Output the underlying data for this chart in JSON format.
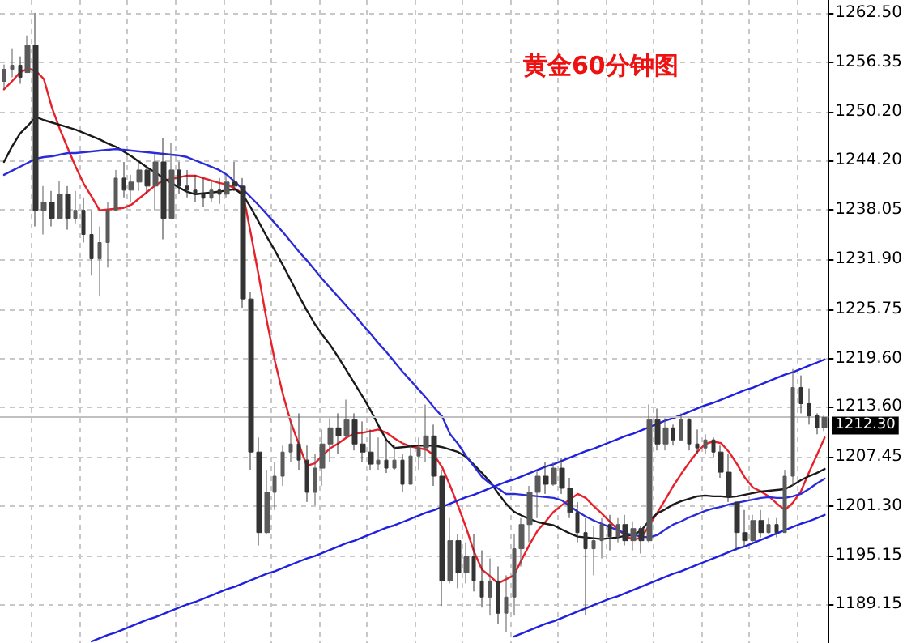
{
  "chart_data": {
    "type": "candlestick",
    "title": "黄金60分钟图",
    "colors": [
      "#5a5a5a",
      "#5a5a5a",
      "#333333",
      "#5a5a5a",
      "#333333",
      "#5a5a5a",
      "#333333",
      "#5a5a5a",
      "#333333",
      "#5a5a5a",
      "#333333",
      "#333333",
      "#5a5a5a",
      "#5a5a5a",
      "#5a5a5a",
      "#333333",
      "#5a5a5a",
      "#5a5a5a",
      "#333333",
      "#5a5a5a",
      "#333333",
      "#5a5a5a",
      "#333333",
      "#333333",
      "#333333",
      "#333333",
      "#5a5a5a",
      "#333333",
      "#5a5a5a",
      "#333333",
      "#333333",
      "#333333",
      "#333333",
      "#5a5a5a",
      "#5a5a5a",
      "#5a5a5a",
      "#5a5a5a",
      "#333333",
      "#333333",
      "#5a5a5a",
      "#5a5a5a",
      "#5a5a5a",
      "#333333",
      "#5a5a5a",
      "#333333",
      "#333333",
      "#333333",
      "#5a5a5a",
      "#333333",
      "#5a5a5a",
      "#333333",
      "#5a5a5a",
      "#5a5a5a",
      "#5a5a5a",
      "#333333",
      "#333333",
      "#5a5a5a",
      "#333333",
      "#5a5a5a",
      "#333333",
      "#333333",
      "#5a5a5a",
      "#333333",
      "#5a5a5a",
      "#5a5a5a",
      "#5a5a5a",
      "#5a5a5a",
      "#5a5a5a",
      "#333333",
      "#5a5a5a",
      "#333333",
      "#333333",
      "#333333",
      "#333333",
      "#5a5a5a",
      "#5a5a5a",
      "#333333",
      "#5a5a5a",
      "#333333",
      "#5a5a5a",
      "#333333",
      "#5a5a5a",
      "#333333",
      "#5a5a5a",
      "#333333",
      "#5a5a5a",
      "#333333",
      "#333333",
      "#5a5a5a",
      "#333333",
      "#333333",
      "#333333",
      "#333333",
      "#333333",
      "#5a5a5a",
      "#333333",
      "#5a5a5a",
      "#333333",
      "#5a5a5a",
      "#5a5a5a",
      "#333333",
      "#333333",
      "#333333",
      "#5a5a5a"
    ],
    "categories": [
      null,
      null,
      null,
      null,
      null,
      null,
      null,
      null,
      null,
      null,
      null,
      null,
      null,
      null,
      null,
      null,
      null,
      null,
      null,
      null,
      null,
      null,
      null,
      null,
      null,
      null,
      null,
      null,
      null,
      null,
      null,
      null,
      null,
      null,
      null,
      null,
      null,
      null,
      null,
      null,
      null,
      null,
      null,
      null,
      null,
      null,
      null,
      null,
      null,
      null,
      null,
      null,
      null,
      null,
      null,
      null,
      null,
      null,
      null,
      null,
      null,
      null,
      null,
      null,
      null,
      null,
      null,
      null,
      null,
      null,
      null,
      null,
      null,
      null,
      null,
      null,
      null,
      null,
      null,
      null,
      null,
      null,
      null,
      null,
      null,
      null,
      null,
      null,
      null,
      null,
      null,
      null,
      null,
      null,
      null,
      null,
      null,
      null,
      null,
      null,
      null,
      null,
      null,
      null
    ],
    "ohlc": [
      [
        1254.0,
        1256.1,
        1253.0,
        1255.5
      ],
      [
        1255.5,
        1258.1,
        1254.5,
        1256.0
      ],
      [
        1256.0,
        1257.1,
        1253.7,
        1254.5
      ],
      [
        1255.1,
        1259.7,
        1255.1,
        1258.5
      ],
      [
        1258.5,
        1262.5,
        1236.0,
        1238.0
      ],
      [
        1238.0,
        1241.0,
        1235.0,
        1239.0
      ],
      [
        1239.0,
        1240.4,
        1236.0,
        1237.0
      ],
      [
        1237.0,
        1241.6,
        1237.0,
        1240.0
      ],
      [
        1240.0,
        1241.0,
        1235.6,
        1237.0
      ],
      [
        1237.0,
        1240.4,
        1236.4,
        1238.0
      ],
      [
        1238.0,
        1239.6,
        1234.0,
        1235.0
      ],
      [
        1235.0,
        1238.0,
        1229.9,
        1232.0
      ],
      [
        1232.0,
        1236.0,
        1227.3,
        1234.0
      ],
      [
        1234.0,
        1239.0,
        1230.9,
        1238.0
      ],
      [
        1238.0,
        1243.0,
        1238.0,
        1242.0
      ],
      [
        1242.0,
        1244.0,
        1239.6,
        1240.5
      ],
      [
        1240.5,
        1242.4,
        1239.0,
        1241.5
      ],
      [
        1241.5,
        1244.0,
        1240.4,
        1243.0
      ],
      [
        1243.0,
        1243.6,
        1240.0,
        1241.0
      ],
      [
        1241.0,
        1245.0,
        1238.0,
        1244.0
      ],
      [
        1244.0,
        1247.0,
        1234.4,
        1237.0
      ],
      [
        1237.0,
        1246.4,
        1237.0,
        1243.0
      ],
      [
        1243.0,
        1244.0,
        1240.0,
        1241.0
      ],
      [
        1241.0,
        1243.0,
        1239.6,
        1240.5
      ],
      [
        1240.5,
        1242.4,
        1239.0,
        1240.0
      ],
      [
        1240.0,
        1242.0,
        1238.4,
        1239.5
      ],
      [
        1239.5,
        1241.6,
        1239.0,
        1240.5
      ],
      [
        1240.5,
        1242.0,
        1238.8,
        1240.0
      ],
      [
        1240.0,
        1242.4,
        1239.6,
        1241.5
      ],
      [
        1241.5,
        1244.0,
        1240.4,
        1241.0
      ],
      [
        1241.0,
        1242.0,
        1225.9,
        1227.0
      ],
      [
        1227.0,
        1227.9,
        1205.8,
        1208.0
      ],
      [
        1208.0,
        1209.8,
        1196.4,
        1198.0
      ],
      [
        1198.0,
        1205.8,
        1197.8,
        1203.0
      ],
      [
        1203.0,
        1206.8,
        1200.8,
        1205.0
      ],
      [
        1205.0,
        1208.8,
        1203.8,
        1208.0
      ],
      [
        1208.0,
        1211.8,
        1206.8,
        1209.0
      ],
      [
        1209.0,
        1212.8,
        1205.8,
        1207.0
      ],
      [
        1207.0,
        1208.8,
        1201.8,
        1203.0
      ],
      [
        1203.0,
        1207.8,
        1201.4,
        1206.0
      ],
      [
        1206.0,
        1210.8,
        1203.8,
        1209.0
      ],
      [
        1209.0,
        1212.2,
        1206.8,
        1211.0
      ],
      [
        1211.0,
        1212.8,
        1207.8,
        1210.0
      ],
      [
        1210.0,
        1214.5,
        1209.8,
        1212.0
      ],
      [
        1212.0,
        1212.8,
        1208.2,
        1209.0
      ],
      [
        1209.0,
        1211.8,
        1206.8,
        1208.0
      ],
      [
        1208.0,
        1210.8,
        1205.8,
        1206.5
      ],
      [
        1206.5,
        1209.8,
        1205.8,
        1207.0
      ],
      [
        1207.0,
        1209.4,
        1205.4,
        1206.0
      ],
      [
        1206.0,
        1208.8,
        1205.8,
        1207.0
      ],
      [
        1207.0,
        1207.8,
        1203.0,
        1204.0
      ],
      [
        1204.0,
        1208.8,
        1204.0,
        1207.5
      ],
      [
        1207.5,
        1209.8,
        1205.8,
        1208.5
      ],
      [
        1208.5,
        1213.9,
        1206.8,
        1210.0
      ],
      [
        1210.0,
        1211.4,
        1203.8,
        1205.0
      ],
      [
        1205.0,
        1205.8,
        1188.9,
        1192.0
      ],
      [
        1192.0,
        1199.8,
        1191.7,
        1197.0
      ],
      [
        1197.0,
        1197.8,
        1191.1,
        1193.0
      ],
      [
        1193.0,
        1196.8,
        1191.7,
        1195.0
      ],
      [
        1195.0,
        1197.8,
        1190.7,
        1192.0
      ],
      [
        1192.0,
        1195.8,
        1188.7,
        1190.0
      ],
      [
        1190.0,
        1194.8,
        1187.7,
        1192.0
      ],
      [
        1192.0,
        1193.8,
        1186.7,
        1188.0
      ],
      [
        1188.0,
        1192.7,
        1185.7,
        1190.0
      ],
      [
        1190.0,
        1197.8,
        1187.7,
        1196.0
      ],
      [
        1196.0,
        1199.8,
        1193.8,
        1199.0
      ],
      [
        1199.0,
        1203.8,
        1196.8,
        1203.0
      ],
      [
        1203.0,
        1205.8,
        1199.8,
        1205.0
      ],
      [
        1205.0,
        1206.8,
        1202.8,
        1204.0
      ],
      [
        1204.0,
        1206.8,
        1203.8,
        1206.0
      ],
      [
        1206.0,
        1207.2,
        1202.8,
        1203.5
      ],
      [
        1203.5,
        1204.8,
        1199.8,
        1200.5
      ],
      [
        1200.5,
        1201.8,
        1196.8,
        1198.0
      ],
      [
        1198.0,
        1199.8,
        1187.7,
        1196.0
      ],
      [
        1196.0,
        1198.8,
        1192.7,
        1197.0
      ],
      [
        1197.0,
        1199.8,
        1194.8,
        1199.0
      ],
      [
        1199.0,
        1200.2,
        1195.8,
        1197.5
      ],
      [
        1197.5,
        1199.8,
        1196.8,
        1199.0
      ],
      [
        1199.0,
        1200.2,
        1196.4,
        1197.0
      ],
      [
        1197.0,
        1199.4,
        1195.8,
        1198.5
      ],
      [
        1198.5,
        1198.8,
        1195.4,
        1197.0
      ],
      [
        1197.0,
        1213.9,
        1196.8,
        1212.0
      ],
      [
        1212.0,
        1213.4,
        1208.2,
        1209.0
      ],
      [
        1209.0,
        1212.2,
        1208.2,
        1211.0
      ],
      [
        1211.0,
        1211.4,
        1208.8,
        1209.5
      ],
      [
        1209.5,
        1212.8,
        1209.4,
        1212.0
      ],
      [
        1212.0,
        1212.2,
        1208.2,
        1209.0
      ],
      [
        1209.0,
        1210.8,
        1207.8,
        1208.5
      ],
      [
        1208.5,
        1210.2,
        1207.8,
        1209.5
      ],
      [
        1209.5,
        1209.8,
        1207.4,
        1208.0
      ],
      [
        1208.0,
        1208.8,
        1204.8,
        1205.5
      ],
      [
        1205.5,
        1207.8,
        1201.8,
        1202.5
      ],
      [
        1201.8,
        1201.8,
        1195.8,
        1198.0
      ],
      [
        1198.0,
        1200.8,
        1196.2,
        1197.0
      ],
      [
        1197.0,
        1200.2,
        1196.8,
        1199.5
      ],
      [
        1199.5,
        1200.8,
        1197.4,
        1198.0
      ],
      [
        1198.0,
        1199.8,
        1197.8,
        1199.0
      ],
      [
        1199.0,
        1199.8,
        1197.4,
        1198.0
      ],
      [
        1198.0,
        1205.8,
        1198.0,
        1205.0
      ],
      [
        1205.0,
        1218.3,
        1203.8,
        1216.0
      ],
      [
        1216.0,
        1217.5,
        1212.8,
        1214.0
      ],
      [
        1214.0,
        1215.9,
        1211.4,
        1212.5
      ],
      [
        1212.5,
        1212.8,
        1210.2,
        1211.0
      ],
      [
        1211.0,
        1212.5,
        1210.6,
        1212.3
      ]
    ],
    "series": [
      {
        "type": "line",
        "color": "#e8202a",
        "values": [
          1253.0,
          1254.0,
          1255.1,
          1255.6,
          1255.3,
          1254.3,
          1250.8,
          1248.1,
          1245.7,
          1243.4,
          1241.3,
          1239.7,
          1238.0,
          1238.1,
          1238.2,
          1238.3,
          1238.7,
          1239.5,
          1240.3,
          1241.1,
          1241.7,
          1241.9,
          1242.1,
          1242.3,
          1242.3,
          1242.0,
          1241.7,
          1241.4,
          1241.2,
          1240.7,
          1240.0,
          1235.0,
          1229.7,
          1224.2,
          1219.3,
          1215.2,
          1211.7,
          1209.0,
          1206.3,
          1206.6,
          1207.6,
          1208.5,
          1209.1,
          1209.8,
          1210.3,
          1210.4,
          1210.6,
          1210.8,
          1210.4,
          1209.7,
          1209.1,
          1208.7,
          1208.5,
          1208.3,
          1207.6,
          1206.1,
          1203.8,
          1201.3,
          1198.6,
          1195.6,
          1193.4,
          1192.6,
          1191.7,
          1192.2,
          1192.7,
          1194.7,
          1196.6,
          1198.3,
          1199.4,
          1200.6,
          1201.4,
          1202.1,
          1202.8,
          1202.3,
          1201.3,
          1200.4,
          1199.4,
          1198.4,
          1197.6,
          1197.1,
          1197.4,
          1198.9,
          1200.5,
          1202.1,
          1203.8,
          1205.3,
          1206.7,
          1208.0,
          1209.0,
          1209.3,
          1209.1,
          1208.0,
          1206.5,
          1204.8,
          1203.6,
          1203.1,
          1202.5,
          1201.6,
          1200.8,
          1201.7,
          1203.1,
          1205.4,
          1207.6,
          1209.8
        ]
      },
      {
        "type": "line",
        "color": "#1a1a1a",
        "values": [
          1244.0,
          1245.9,
          1247.5,
          1248.5,
          1249.6,
          1249.2,
          1248.9,
          1248.6,
          1248.3,
          1248.0,
          1247.6,
          1247.2,
          1246.8,
          1246.3,
          1245.9,
          1245.3,
          1244.7,
          1244.0,
          1243.3,
          1242.7,
          1242.0,
          1241.4,
          1240.8,
          1240.3,
          1240.0,
          1240.1,
          1240.2,
          1240.3,
          1240.5,
          1240.6,
          1239.9,
          1238.3,
          1236.5,
          1234.7,
          1233.0,
          1231.2,
          1229.3,
          1227.4,
          1225.6,
          1223.9,
          1222.5,
          1221.2,
          1219.7,
          1218.1,
          1216.5,
          1214.9,
          1213.2,
          1211.3,
          1209.5,
          1208.5,
          1208.6,
          1208.7,
          1208.8,
          1208.8,
          1208.8,
          1208.6,
          1208.3,
          1208.0,
          1207.4,
          1206.4,
          1205.4,
          1204.3,
          1202.9,
          1201.6,
          1200.6,
          1200.1,
          1199.7,
          1199.3,
          1199.1,
          1198.9,
          1198.4,
          1197.9,
          1197.5,
          1197.4,
          1197.3,
          1197.2,
          1197.3,
          1197.4,
          1197.6,
          1197.7,
          1198.3,
          1199.5,
          1200.4,
          1200.9,
          1201.5,
          1201.9,
          1202.2,
          1202.5,
          1202.6,
          1202.5,
          1202.5,
          1202.4,
          1202.5,
          1202.7,
          1202.9,
          1203.1,
          1203.2,
          1203.3,
          1203.4,
          1203.9,
          1204.5,
          1205.0,
          1205.4,
          1205.9
        ]
      },
      {
        "type": "line",
        "color": "#2b2bd9",
        "values": [
          1242.4,
          1242.9,
          1243.4,
          1243.9,
          1244.4,
          1244.6,
          1244.7,
          1244.9,
          1245.1,
          1245.1,
          1245.2,
          1245.3,
          1245.4,
          1245.5,
          1245.6,
          1245.5,
          1245.4,
          1245.3,
          1245.2,
          1245.1,
          1245.0,
          1244.9,
          1244.8,
          1244.6,
          1244.2,
          1243.8,
          1243.4,
          1243.0,
          1242.4,
          1241.5,
          1240.6,
          1239.6,
          1238.6,
          1237.5,
          1236.4,
          1235.3,
          1234.1,
          1232.9,
          1231.8,
          1230.6,
          1229.4,
          1228.3,
          1227.2,
          1226.1,
          1225.0,
          1223.8,
          1222.7,
          1221.5,
          1220.4,
          1219.2,
          1218.0,
          1216.9,
          1215.8,
          1214.7,
          1213.5,
          1212.4,
          1210.2,
          1209.0,
          1207.5,
          1206.2,
          1204.9,
          1204.1,
          1203.5,
          1202.8,
          1202.8,
          1202.7,
          1202.6,
          1202.5,
          1202.4,
          1202.3,
          1202.0,
          1201.3,
          1200.6,
          1200.0,
          1199.5,
          1199.1,
          1198.7,
          1198.3,
          1197.9,
          1197.7,
          1197.5,
          1197.4,
          1197.7,
          1198.4,
          1199.0,
          1199.4,
          1199.9,
          1200.3,
          1200.7,
          1201.0,
          1201.2,
          1201.5,
          1201.7,
          1201.9,
          1202.1,
          1202.3,
          1202.4,
          1202.3,
          1202.3,
          1202.5,
          1202.8,
          1203.4,
          1204.1,
          1204.7
        ]
      },
      {
        "type": "line",
        "color": "#2020e0",
        "values": [
          null,
          null,
          null,
          null,
          null,
          null,
          null,
          null,
          null,
          null,
          null,
          1184.5,
          1184.9,
          1185.3,
          1185.6,
          1186.0,
          1186.4,
          1186.8,
          1187.2,
          1187.5,
          1187.9,
          1188.3,
          1188.7,
          1189.1,
          1189.4,
          1189.8,
          1190.2,
          1190.6,
          1191.0,
          1191.3,
          1191.7,
          1192.1,
          1192.5,
          1192.9,
          1193.2,
          1193.6,
          1194.0,
          1194.4,
          1194.8,
          1195.1,
          1195.5,
          1195.9,
          1196.3,
          1196.7,
          1197.0,
          1197.4,
          1197.8,
          1198.2,
          1198.6,
          1198.9,
          1199.3,
          1199.7,
          1200.1,
          1200.5,
          1200.8,
          1201.2,
          1201.6,
          1202.0,
          1202.4,
          1202.7,
          1203.1,
          1203.5,
          1203.9,
          1204.3,
          1204.6,
          1205.0,
          1205.4,
          1205.8,
          1206.2,
          1206.5,
          1206.9,
          1207.3,
          1207.7,
          1208.1,
          1208.4,
          1208.8,
          1209.2,
          1209.6,
          1210.0,
          1210.3,
          1210.7,
          1211.1,
          1211.5,
          1211.9,
          1212.2,
          1212.6,
          1213.0,
          1213.4,
          1213.8,
          1214.1,
          1214.5,
          1214.9,
          1215.3,
          1215.7,
          1216.0,
          1216.4,
          1216.8,
          1217.2,
          1217.6,
          1217.9,
          1218.3,
          1218.7,
          1219.1,
          1219.5
        ]
      },
      {
        "type": "line",
        "color": "#2020e0",
        "values": [
          null,
          null,
          null,
          null,
          null,
          null,
          null,
          null,
          null,
          null,
          null,
          null,
          null,
          null,
          null,
          null,
          null,
          null,
          null,
          null,
          null,
          null,
          null,
          null,
          null,
          null,
          null,
          null,
          null,
          null,
          null,
          null,
          null,
          null,
          null,
          null,
          null,
          null,
          null,
          null,
          null,
          null,
          null,
          null,
          null,
          null,
          null,
          null,
          null,
          null,
          null,
          null,
          null,
          null,
          null,
          null,
          null,
          null,
          null,
          null,
          null,
          null,
          null,
          null,
          1185.1,
          1185.5,
          1185.9,
          1186.3,
          1186.7,
          1187.0,
          1187.4,
          1187.8,
          1188.2,
          1188.6,
          1189.0,
          1189.4,
          1189.8,
          1190.1,
          1190.5,
          1190.9,
          1191.3,
          1191.7,
          1192.1,
          1192.5,
          1192.9,
          1193.2,
          1193.6,
          1194.0,
          1194.4,
          1194.8,
          1195.2,
          1195.6,
          1196.0,
          1196.3,
          1196.7,
          1197.1,
          1197.5,
          1197.9,
          1198.3,
          1198.7,
          1199.1,
          1199.4,
          1199.8,
          1200.2
        ]
      }
    ],
    "ylim": [
      1184.3,
      1264.1
    ],
    "yticks": [
      {
        "value": 1262.5,
        "label": "1262.50"
      },
      {
        "value": 1256.35,
        "label": "1256.35"
      },
      {
        "value": 1250.2,
        "label": "1250.20"
      },
      {
        "value": 1244.2,
        "label": "1244.20"
      },
      {
        "value": 1238.05,
        "label": "1238.05"
      },
      {
        "value": 1231.9,
        "label": "1231.90"
      },
      {
        "value": 1225.75,
        "label": "1225.75"
      },
      {
        "value": 1219.6,
        "label": "1219.60"
      },
      {
        "value": 1213.6,
        "label": "1213.60"
      },
      {
        "value": 1207.45,
        "label": "1207.45"
      },
      {
        "value": 1201.3,
        "label": "1201.30"
      },
      {
        "value": 1195.15,
        "label": "1195.15"
      },
      {
        "value": 1189.15,
        "label": "1189.15"
      }
    ],
    "ref_lines": [
      {
        "axis": "y",
        "value": 1212.3,
        "label": "1212.30",
        "color": "#c0c0c0"
      }
    ],
    "grid": true,
    "tick_labels": "y",
    "line_style": "solid"
  }
}
